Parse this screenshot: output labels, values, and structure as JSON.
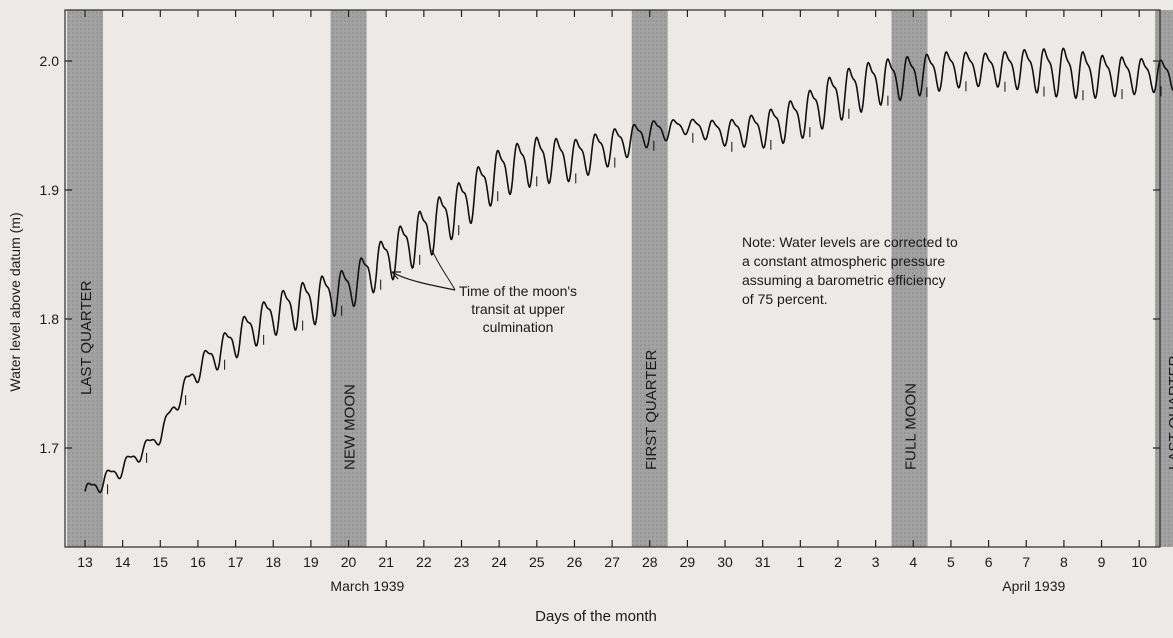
{
  "chart_data": {
    "type": "line",
    "title": "",
    "xlabel": "Days of the month",
    "ylabel": "Water level above datum (m)",
    "ylim": [
      1.64,
      2.06
    ],
    "y_ticks": [
      1.7,
      1.8,
      1.9,
      2.0
    ],
    "y_tick_labels": [
      "1.7",
      "1.8",
      "1.9",
      "2.0"
    ],
    "x_tick_labels": [
      "13",
      "14",
      "15",
      "16",
      "17",
      "18",
      "19",
      "20",
      "21",
      "22",
      "23",
      "24",
      "25",
      "26",
      "27",
      "28",
      "29",
      "30",
      "31",
      "1",
      "2",
      "3",
      "4",
      "5",
      "6",
      "7",
      "8",
      "9",
      "10"
    ],
    "month_labels": [
      {
        "text": "March 1939",
        "at_day_index": 7.5
      },
      {
        "text": "April 1939",
        "at_day_index": 25.2
      }
    ],
    "moon_phases": [
      {
        "label": "LAST QUARTER",
        "day_index": 0.0
      },
      {
        "label": "NEW MOON",
        "day_index": 7.0
      },
      {
        "label": "FIRST QUARTER",
        "day_index": 15.0
      },
      {
        "label": "FULL MOON",
        "day_index": 21.9
      },
      {
        "label": "LAST QUARTER",
        "day_index": 28.9
      }
    ],
    "annotations": {
      "transit": [
        "Time of the moon's",
        "transit at upper",
        "culmination"
      ],
      "note": [
        "Note: Water levels are corrected to",
        "a constant atmospheric pressure",
        "assuming a barometric efficiency",
        "of 75 percent."
      ]
    },
    "series": [
      {
        "trend": [
          [
            0.0,
            1.665
          ],
          [
            1.0,
            1.685
          ],
          [
            2.0,
            1.71
          ],
          [
            2.5,
            1.74
          ],
          [
            3.0,
            1.762
          ],
          [
            4.0,
            1.785
          ],
          [
            5.0,
            1.805
          ],
          [
            6.0,
            1.815
          ],
          [
            7.0,
            1.825
          ],
          [
            8.0,
            1.848
          ],
          [
            9.0,
            1.868
          ],
          [
            10.0,
            1.89
          ],
          [
            11.0,
            1.915
          ],
          [
            12.0,
            1.925
          ],
          [
            13.0,
            1.925
          ],
          [
            14.0,
            1.935
          ],
          [
            15.0,
            1.945
          ],
          [
            16.0,
            1.95
          ],
          [
            17.0,
            1.945
          ],
          [
            18.0,
            1.948
          ],
          [
            19.0,
            1.958
          ],
          [
            20.0,
            1.975
          ],
          [
            21.0,
            1.985
          ],
          [
            22.0,
            1.99
          ],
          [
            23.0,
            1.995
          ],
          [
            24.0,
            1.995
          ],
          [
            25.0,
            1.995
          ],
          [
            26.0,
            1.993
          ],
          [
            27.0,
            1.99
          ],
          [
            28.0,
            1.99
          ],
          [
            28.9,
            1.99
          ]
        ],
        "tidal_amplitude": [
          [
            0.0,
            0.006
          ],
          [
            2.0,
            0.005
          ],
          [
            4.0,
            0.012
          ],
          [
            6.0,
            0.016
          ],
          [
            7.0,
            0.014
          ],
          [
            9.0,
            0.018
          ],
          [
            12.0,
            0.016
          ],
          [
            14.0,
            0.012
          ],
          [
            16.0,
            0.005
          ],
          [
            18.0,
            0.012
          ],
          [
            20.0,
            0.017
          ],
          [
            22.0,
            0.014
          ],
          [
            24.0,
            0.011
          ],
          [
            26.0,
            0.017
          ],
          [
            28.0,
            0.012
          ],
          [
            28.9,
            0.01
          ]
        ],
        "cycles_per_day": 1.93
      }
    ]
  }
}
